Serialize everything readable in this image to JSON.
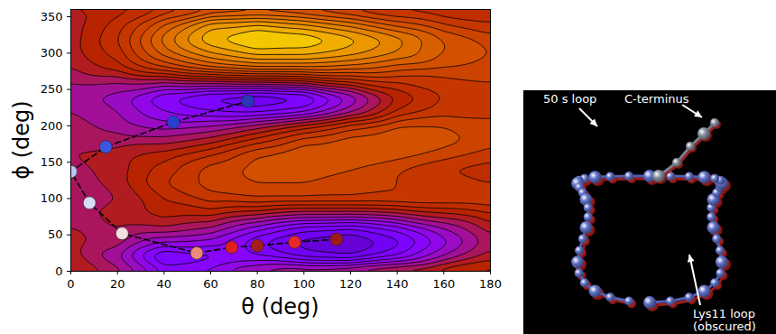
{
  "chart_data": {
    "type": "contour",
    "xlabel": "θ (deg)",
    "ylabel": "ϕ (deg)",
    "xlim": [
      0,
      180
    ],
    "ylim": [
      0,
      360
    ],
    "xticks": [
      0,
      20,
      40,
      60,
      80,
      100,
      120,
      140,
      160,
      180
    ],
    "yticks": [
      0,
      50,
      100,
      150,
      200,
      250,
      300,
      350
    ],
    "zlim": [
      0,
      10
    ],
    "surface": {
      "x": [
        0,
        20,
        40,
        60,
        80,
        100,
        120,
        140,
        160,
        180
      ],
      "y": [
        0,
        20,
        40,
        60,
        80,
        100,
        120,
        140,
        160,
        180,
        200,
        220,
        240,
        260,
        280,
        300,
        320,
        340,
        360
      ],
      "values": [
        [
          5.2,
          4.6,
          3.2,
          3.4,
          4.2,
          4.6,
          4.8,
          5.2,
          5.6,
          5.8
        ],
        [
          5.0,
          4.0,
          2.2,
          2.6,
          2.8,
          2.2,
          2.0,
          2.8,
          4.0,
          5.0
        ],
        [
          5.0,
          4.6,
          3.6,
          3.4,
          2.4,
          1.8,
          1.5,
          2.2,
          3.4,
          4.6
        ],
        [
          4.8,
          4.8,
          4.8,
          4.4,
          3.4,
          2.6,
          2.4,
          3.0,
          4.0,
          5.0
        ],
        [
          4.6,
          5.0,
          5.4,
          5.4,
          5.0,
          4.6,
          4.6,
          4.8,
          5.2,
          5.6
        ],
        [
          4.4,
          4.8,
          5.6,
          6.2,
          6.4,
          6.4,
          6.4,
          6.4,
          6.4,
          6.4
        ],
        [
          4.4,
          5.0,
          6.0,
          6.6,
          6.8,
          6.8,
          6.6,
          6.4,
          6.2,
          6.0
        ],
        [
          4.6,
          5.0,
          5.8,
          6.6,
          7.0,
          7.0,
          6.8,
          6.4,
          6.0,
          5.8
        ],
        [
          4.8,
          5.0,
          5.4,
          6.0,
          6.8,
          7.2,
          7.2,
          7.0,
          6.6,
          6.2
        ],
        [
          4.8,
          4.6,
          4.6,
          5.0,
          5.8,
          6.6,
          7.0,
          7.2,
          7.0,
          6.6
        ],
        [
          4.6,
          4.2,
          3.8,
          4.0,
          4.6,
          5.4,
          6.2,
          6.8,
          6.8,
          6.6
        ],
        [
          4.4,
          4.0,
          3.2,
          2.8,
          2.6,
          3.0,
          4.2,
          5.6,
          6.2,
          6.2
        ],
        [
          4.2,
          3.8,
          2.8,
          2.2,
          1.9,
          2.2,
          3.6,
          5.2,
          6.0,
          6.2
        ],
        [
          4.4,
          4.4,
          4.4,
          4.6,
          4.8,
          5.0,
          5.6,
          6.0,
          6.2,
          6.4
        ],
        [
          4.8,
          5.4,
          6.4,
          7.2,
          7.6,
          7.6,
          7.4,
          7.0,
          6.8,
          6.6
        ],
        [
          5.0,
          5.8,
          7.4,
          8.4,
          9.0,
          9.0,
          8.6,
          8.0,
          7.2,
          6.8
        ],
        [
          5.0,
          6.0,
          7.8,
          9.2,
          9.8,
          9.6,
          9.0,
          8.2,
          7.2,
          6.6
        ],
        [
          5.0,
          5.8,
          7.2,
          8.6,
          8.8,
          8.4,
          7.8,
          7.0,
          6.4,
          6.0
        ],
        [
          5.2,
          5.4,
          6.0,
          6.6,
          6.8,
          6.6,
          6.2,
          5.8,
          5.6,
          5.8
        ]
      ]
    },
    "series": [
      {
        "type": "line",
        "color": "#000000",
        "line_style": "dashed",
        "marker": "o",
        "x": [
          114,
          96,
          80,
          69,
          54,
          22,
          8,
          0,
          15,
          44,
          76
        ],
        "y": [
          44,
          40,
          35,
          33,
          25,
          52,
          94,
          137,
          171,
          205,
          234
        ],
        "colors": [
          "#a01818",
          "#e8282a",
          "#a81c1c",
          "#e01e20",
          "#f08878",
          "#f4e0e0",
          "#d8dcf4",
          "#b8c4f4",
          "#3c56e0",
          "#2a40d0",
          "#2838b8"
        ]
      }
    ]
  },
  "image_panel": {
    "labels": [
      "50 s loop",
      "C-terminus",
      "Lys11 loop\n(obscured)"
    ]
  }
}
